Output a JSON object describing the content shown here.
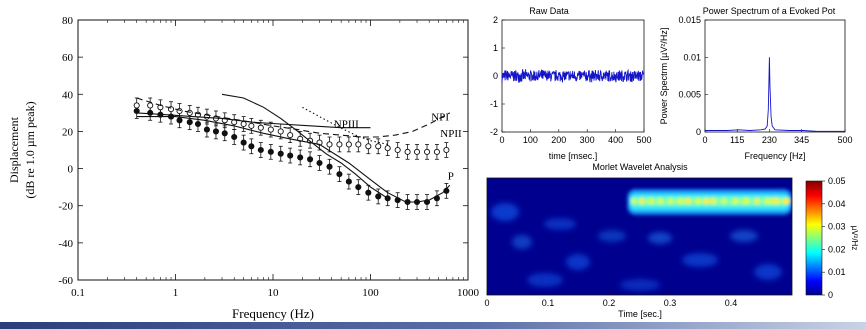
{
  "colors": {
    "background": "#ffffff",
    "bottom_bar_left": "#2a3f7a",
    "bottom_bar_right": "#c9d3e6",
    "signal_blue": "#1515c8",
    "mark_black": "#111111"
  },
  "chart_data": [
    {
      "id": "displacement",
      "type": "line",
      "xlabel": "Frequency (Hz)",
      "ylabel": "Displacement",
      "ylabel_sub": "(dB re 1.0 µm peak)",
      "xscale": "log",
      "xlim": [
        0.1,
        1000
      ],
      "ylim": [
        -60,
        80
      ],
      "xticks": [
        0.1,
        1,
        10,
        100,
        1000
      ],
      "xtick_labels": [
        "0.1",
        "1",
        "10",
        "100",
        "1000"
      ],
      "yticks": [
        -60,
        -40,
        -20,
        0,
        20,
        40,
        60,
        80
      ],
      "ytick_labels": [
        "-60",
        "-40",
        "-20",
        "0",
        "20",
        "40",
        "60",
        "80"
      ],
      "annotations": [
        {
          "text": "NPIII",
          "x": 42,
          "y": 22
        },
        {
          "text": "NPI",
          "x": 420,
          "y": 26
        },
        {
          "text": "NPII",
          "x": 520,
          "y": 17
        },
        {
          "text": "P",
          "x": 620,
          "y": -6
        }
      ],
      "series": [
        {
          "style": "filled-circles-with-errorbars",
          "x": [
            0.4,
            0.55,
            0.7,
            0.9,
            1.1,
            1.4,
            1.7,
            2.1,
            2.6,
            3.2,
            4,
            5,
            6,
            7.5,
            9.5,
            12,
            15,
            19,
            24,
            30,
            38,
            48,
            60,
            75,
            95,
            120,
            150,
            190,
            240,
            300,
            380,
            480,
            600
          ],
          "y": [
            31,
            30,
            29,
            28,
            26,
            25,
            24,
            21,
            20,
            19,
            17,
            14,
            12,
            10,
            9,
            8,
            7,
            6,
            5,
            3,
            1,
            -3,
            -7,
            -10,
            -13,
            -15,
            -16,
            -17,
            -18,
            -18,
            -18,
            -16,
            -12
          ],
          "err": [
            4,
            4,
            4,
            4,
            4,
            4,
            4,
            4,
            4,
            4,
            4,
            4,
            4,
            4,
            4,
            4,
            4,
            4,
            4,
            4,
            4,
            4,
            4,
            4,
            4,
            4,
            4,
            4,
            4,
            4,
            4,
            4,
            4
          ]
        },
        {
          "style": "open-circles-with-errorbars",
          "x": [
            0.4,
            0.55,
            0.7,
            0.9,
            1.1,
            1.4,
            1.7,
            2.1,
            2.6,
            3.2,
            4,
            5,
            6,
            7.5,
            9.5,
            12,
            15,
            19,
            24,
            30,
            38,
            48,
            60,
            75,
            95,
            120,
            150,
            190,
            240,
            300,
            380,
            480,
            600
          ],
          "y": [
            34,
            34,
            33,
            32,
            31,
            30,
            29,
            28,
            27,
            26,
            25,
            24,
            23,
            22,
            21,
            20,
            18,
            16,
            15,
            14,
            13,
            13,
            13,
            13,
            12,
            12,
            11,
            10,
            9,
            9,
            9,
            9,
            10
          ],
          "err": [
            4,
            4,
            4,
            4,
            4,
            4,
            4,
            4,
            4,
            4,
            4,
            4,
            4,
            4,
            4,
            4,
            4,
            4,
            4,
            4,
            4,
            4,
            4,
            4,
            4,
            4,
            4,
            4,
            4,
            4,
            4,
            4,
            4
          ]
        },
        {
          "style": "solid-line",
          "x": [
            0.4,
            1,
            2,
            4,
            8,
            15,
            30,
            60,
            100,
            150,
            230,
            300,
            400,
            550,
            650
          ],
          "y": [
            28,
            28,
            26,
            23,
            19,
            16,
            13,
            3,
            -6,
            -13,
            -18,
            -18,
            -17,
            -13,
            -9
          ]
        },
        {
          "style": "solid-line",
          "x": [
            0.4,
            0.8,
            1.5,
            3,
            6,
            12,
            25,
            50,
            100
          ],
          "y": [
            30,
            29,
            28,
            27,
            25,
            24,
            23,
            22,
            22
          ]
        },
        {
          "style": "solid-line",
          "x": [
            3,
            5,
            8,
            12,
            18,
            25,
            35,
            50,
            70,
            100,
            150
          ],
          "y": [
            40,
            38,
            33,
            27,
            20,
            14,
            8,
            3,
            -3,
            -10,
            -16
          ]
        },
        {
          "style": "dotted-line",
          "x": [
            20,
            30,
            45,
            70,
            100,
            150
          ],
          "y": [
            33,
            28,
            23,
            18,
            15,
            13
          ]
        },
        {
          "style": "dashed-line",
          "x": [
            0.4,
            0.7,
            1.2,
            2,
            3.5,
            6,
            10,
            18,
            30,
            50,
            80,
            120,
            180,
            270,
            400,
            650
          ],
          "y": [
            38,
            34,
            31,
            29,
            27,
            25,
            23,
            21,
            19,
            18,
            17,
            17,
            18,
            20,
            24,
            30
          ]
        }
      ]
    },
    {
      "id": "raw-data",
      "type": "line",
      "title": "Raw Data",
      "xlabel": "time [msec.]",
      "ylabel": "",
      "xlim": [
        0,
        500
      ],
      "ylim": [
        -2,
        2
      ],
      "xticks": [
        0,
        100,
        200,
        300,
        400,
        500
      ],
      "xtick_labels": [
        "0",
        "100",
        "200",
        "300",
        "400",
        "500"
      ],
      "yticks": [
        -2,
        -1,
        0,
        1,
        2
      ],
      "ytick_labels": [
        "-2",
        "-1",
        "0",
        "1",
        "2"
      ],
      "series": [
        {
          "style": "noise",
          "center": 0.0,
          "amplitude": 0.25
        }
      ]
    },
    {
      "id": "power-spectrum",
      "type": "line",
      "title": "Power Spectrum of a Evoked Pot",
      "xlabel": "Frequency [Hz]",
      "ylabel": "Power Spectrm [µV²/Hz]",
      "xlim": [
        0,
        500
      ],
      "ylim": [
        0,
        0.015
      ],
      "xticks": [
        0,
        115,
        230,
        345,
        500
      ],
      "xtick_labels": [
        "0",
        "115",
        "230",
        "345",
        "500"
      ],
      "yticks": [
        0,
        0.005,
        0.01,
        0.015
      ],
      "ytick_labels": [
        "0",
        "0.005",
        "0.01",
        "0.015"
      ],
      "series": [
        {
          "x": [
            0,
            40,
            80,
            120,
            160,
            200,
            215,
            222,
            226,
            228,
            230,
            232,
            236,
            240,
            250,
            300,
            350,
            400,
            450,
            500
          ],
          "y": [
            0.0002,
            0.0002,
            0.0002,
            0.0003,
            0.0002,
            0.0003,
            0.0004,
            0.0008,
            0.003,
            0.006,
            0.01,
            0.006,
            0.002,
            0.0008,
            0.0003,
            0.0002,
            0.0002,
            0.0001,
            0.0001,
            0.0001
          ]
        }
      ]
    },
    {
      "id": "wavelet",
      "type": "heatmap",
      "title": "Morlet Wavelet Analysis",
      "xlabel": "Time [sec.]",
      "xlim": [
        0,
        0.5
      ],
      "xticks": [
        0,
        0.1,
        0.2,
        0.3,
        0.4
      ],
      "xtick_labels": [
        "0",
        "0.1",
        "0.2",
        "0.3",
        "0.4"
      ],
      "colorbar": {
        "min": 0,
        "max": 0.05,
        "ticks": [
          0,
          0.01,
          0.02,
          0.03,
          0.04,
          0.05
        ],
        "tick_labels": [
          "0",
          "0.01",
          "0.02",
          "0.03",
          "0.04",
          "0.05"
        ],
        "label": "µV²/Hz"
      },
      "band": {
        "start": 0.23,
        "end": 0.5,
        "peak": 0.05
      }
    }
  ]
}
